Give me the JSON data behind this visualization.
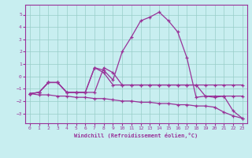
{
  "xlabel": "Windchill (Refroidissement éolien,°C)",
  "background_color": "#c8eef0",
  "grid_color": "#98cec8",
  "line_color": "#993399",
  "xlim": [
    -0.5,
    23.5
  ],
  "ylim": [
    -3.8,
    5.8
  ],
  "xticks": [
    0,
    1,
    2,
    3,
    4,
    5,
    6,
    7,
    8,
    9,
    10,
    11,
    12,
    13,
    14,
    15,
    16,
    17,
    18,
    19,
    20,
    21,
    22,
    23
  ],
  "yticks": [
    -3,
    -2,
    -1,
    0,
    1,
    2,
    3,
    4,
    5
  ],
  "series_bell": {
    "x": [
      0,
      1,
      2,
      3,
      4,
      5,
      6,
      7,
      8,
      9,
      10,
      11,
      12,
      13,
      14,
      15,
      16,
      17,
      18,
      19,
      20,
      21,
      22,
      23
    ],
    "y": [
      -1.4,
      -1.3,
      -0.5,
      -0.5,
      -1.3,
      -1.3,
      -1.3,
      0.7,
      0.5,
      -0.3,
      2.0,
      3.2,
      4.5,
      4.8,
      5.2,
      4.5,
      3.6,
      1.5,
      -1.7,
      -1.6,
      -1.7,
      -1.6,
      -2.8,
      -3.4
    ]
  },
  "series_diag": {
    "x": [
      0,
      1,
      2,
      3,
      4,
      5,
      6,
      7,
      8,
      9,
      10,
      11,
      12,
      13,
      14,
      15,
      16,
      17,
      18,
      19,
      20,
      21,
      22,
      23
    ],
    "y": [
      -1.4,
      -1.5,
      -1.5,
      -1.6,
      -1.6,
      -1.7,
      -1.7,
      -1.8,
      -1.8,
      -1.9,
      -2.0,
      -2.0,
      -2.1,
      -2.1,
      -2.2,
      -2.2,
      -2.3,
      -2.3,
      -2.4,
      -2.4,
      -2.5,
      -2.9,
      -3.2,
      -3.4
    ]
  },
  "series_flat1": {
    "x": [
      0,
      1,
      2,
      3,
      4,
      5,
      6,
      7,
      8,
      9,
      10,
      11,
      12,
      13,
      14,
      15,
      16,
      17,
      18,
      19,
      20,
      21,
      22,
      23
    ],
    "y": [
      -1.4,
      -1.3,
      -0.5,
      -0.5,
      -1.3,
      -1.3,
      -1.3,
      0.7,
      0.3,
      -0.7,
      -0.7,
      -0.7,
      -0.7,
      -0.7,
      -0.7,
      -0.7,
      -0.7,
      -0.7,
      -0.7,
      -0.7,
      -0.7,
      -0.7,
      -0.7,
      -0.7
    ]
  },
  "series_flat2": {
    "x": [
      0,
      1,
      2,
      3,
      4,
      5,
      6,
      7,
      8,
      9,
      10,
      11,
      12,
      13,
      14,
      15,
      16,
      17,
      18,
      19,
      20,
      21,
      22,
      23
    ],
    "y": [
      -1.4,
      -1.3,
      -0.5,
      -0.5,
      -1.3,
      -1.3,
      -1.3,
      -1.3,
      0.7,
      0.3,
      -0.7,
      -0.7,
      -0.7,
      -0.7,
      -0.7,
      -0.7,
      -0.7,
      -0.7,
      -0.7,
      -1.6,
      -1.6,
      -1.6,
      -1.6,
      -1.6
    ]
  }
}
